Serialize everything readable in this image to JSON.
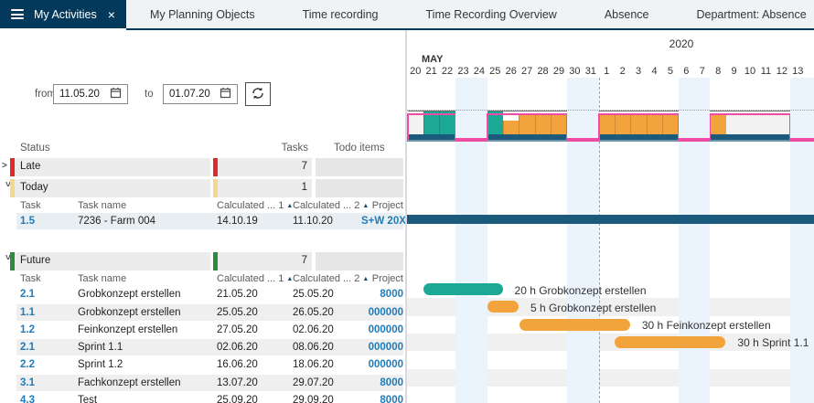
{
  "tabs": [
    {
      "label": "My Activities",
      "active": true,
      "closable": true
    },
    {
      "label": "My Planning Objects",
      "active": false,
      "closable": false
    },
    {
      "label": "Time recording",
      "active": false,
      "closable": false
    },
    {
      "label": "Time Recording Overview",
      "active": false,
      "closable": false
    },
    {
      "label": "Absence",
      "active": false,
      "closable": false
    },
    {
      "label": "Department: Absence",
      "active": false,
      "closable": false
    }
  ],
  "icons": {
    "menu": "hamburger-icon",
    "close_tab": "×",
    "calendar": "calendar-icon",
    "refresh": "sync-icon",
    "chevron": ">",
    "sort_asc": "▲"
  },
  "filters": {
    "from_label": "from",
    "from_value": "11.05.20",
    "to_label": "to",
    "to_value": "01.07.20"
  },
  "table": {
    "columns": {
      "status": "Status",
      "tasks": "Tasks",
      "todo": "Todo items"
    },
    "sub_columns": {
      "task": "Task",
      "task_name": "Task name",
      "calc1": "Calculated ... 1",
      "calc2": "Calculated ... 2",
      "project": "Project"
    },
    "groups": [
      {
        "label": "Late",
        "count": "7",
        "expanded": false,
        "color": "#E02B2B",
        "rows": []
      },
      {
        "label": "Today",
        "count": "1",
        "expanded": true,
        "color": "#F2D98E",
        "rows": [
          {
            "task": "1.5",
            "name": "7236 - Farm 004",
            "calc1": "14.10.19",
            "calc2": "11.10.20",
            "project": "S+W 20X",
            "selected": true
          }
        ]
      },
      {
        "label": "Future",
        "count": "7",
        "expanded": true,
        "color": "#2E8A3E",
        "rows": [
          {
            "task": "2.1",
            "name": "Grobkonzept erstellen",
            "calc1": "21.05.20",
            "calc2": "25.05.20",
            "project": "8000",
            "selected": false
          },
          {
            "task": "1.1",
            "name": "Grobkonzept erstellen",
            "calc1": "25.05.20",
            "calc2": "26.05.20",
            "project": "000000",
            "selected": false
          },
          {
            "task": "1.2",
            "name": "Feinkonzept erstellen",
            "calc1": "27.05.20",
            "calc2": "02.06.20",
            "project": "000000",
            "selected": false
          },
          {
            "task": "2.1",
            "name": "Sprint 1.1",
            "calc1": "02.06.20",
            "calc2": "08.06.20",
            "project": "000000",
            "selected": false
          },
          {
            "task": "2.2",
            "name": "Sprint 1.2",
            "calc1": "16.06.20",
            "calc2": "18.06.20",
            "project": "000000",
            "selected": false
          },
          {
            "task": "3.1",
            "name": "Fachkonzept erstellen",
            "calc1": "13.07.20",
            "calc2": "29.07.20",
            "project": "8000",
            "selected": false
          },
          {
            "task": "4.3",
            "name": "Test",
            "calc1": "25.09.20",
            "calc2": "29.09.20",
            "project": "8000",
            "selected": false
          }
        ]
      }
    ]
  },
  "colors": {
    "header_navy": "#04395C",
    "late_red": "#E02B2B",
    "today_yellow": "#F2D98E",
    "future_green": "#2E8A3E",
    "link_blue": "#1F7CB8",
    "teal": "#1BA995",
    "orange": "#F2A33C",
    "dark_bar": "#1B5A7D",
    "capacity_pink": "#F04CA4",
    "weekend_blue": "#EBF3FC",
    "empty_cell": "#F2F2F2"
  },
  "chart_data": {
    "type": "gantt",
    "year_label": "2020",
    "month_label": "MAY",
    "day_labels": [
      "20",
      "21",
      "22",
      "23",
      "24",
      "25",
      "26",
      "27",
      "28",
      "29",
      "30",
      "31",
      "1",
      "2",
      "3",
      "4",
      "5",
      "6",
      "7",
      "8",
      "9",
      "10",
      "11",
      "12",
      "13",
      ""
    ],
    "weekend_day_indices": [
      3,
      4,
      10,
      11,
      17,
      18,
      24,
      25
    ],
    "month_divider_day_index": 12,
    "capacity_per_day": [
      "none",
      "over",
      "over",
      "weekend",
      "weekend",
      "over",
      "partial",
      "at",
      "at",
      "at",
      "weekend",
      "weekend",
      "at",
      "at",
      "at",
      "at",
      "at",
      "weekend",
      "weekend",
      "at",
      "none",
      "none",
      "none",
      "none",
      "weekend",
      "weekend"
    ],
    "capacity_colors": {
      "over": "teal",
      "at": "orange",
      "partial": "orange"
    },
    "summary_bar": {
      "task": "1.5",
      "spans_full_range": true,
      "color_key": "dark_bar"
    },
    "bars": [
      {
        "task": "2.1",
        "label": "20 h Grobkonzept erstellen",
        "start_day_index": 1,
        "num_days": 5,
        "color_key": "teal"
      },
      {
        "task": "1.1",
        "label": "5 h Grobkonzept erstellen",
        "start_day_index": 5,
        "num_days": 2,
        "color_key": "orange"
      },
      {
        "task": "1.2",
        "label": "30 h Feinkonzept erstellen",
        "start_day_index": 7,
        "num_days": 7,
        "color_key": "orange"
      },
      {
        "task": "2.1",
        "label": "30 h Sprint 1.1",
        "start_day_index": 13,
        "num_days": 7,
        "color_key": "orange"
      }
    ]
  }
}
